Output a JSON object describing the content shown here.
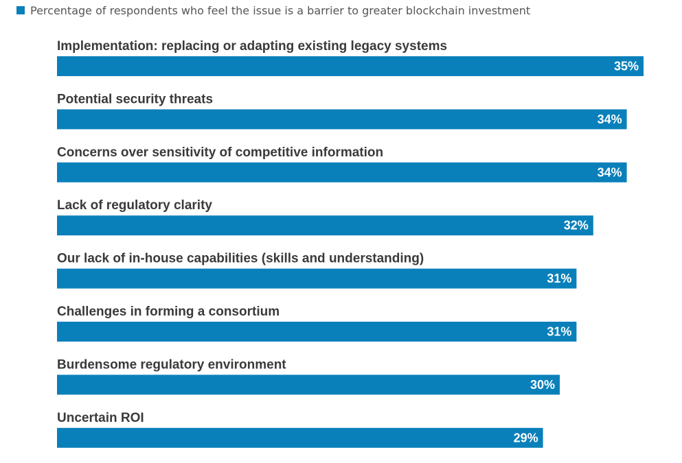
{
  "legend": {
    "label": "Percentage of respondents who feel the issue is a barrier to greater blockchain investment",
    "color": "#0a80ba"
  },
  "chart_data": {
    "type": "bar",
    "orientation": "horizontal",
    "categories": [
      "Implementation: replacing or adapting existing legacy systems",
      "Potential security threats",
      "Concerns over sensitivity of competitive information",
      "Lack of regulatory clarity",
      "Our lack of in-house capabilities (skills and understanding)",
      "Challenges in forming a consortium",
      "Burdensome regulatory environment",
      "Uncertain ROI"
    ],
    "values": [
      35,
      34,
      34,
      32,
      31,
      31,
      30,
      29
    ],
    "value_labels": [
      "35%",
      "34%",
      "34%",
      "32%",
      "31%",
      "31%",
      "30%",
      "29%"
    ],
    "series": [
      {
        "name": "Percentage of respondents who feel the issue is a barrier to greater blockchain investment",
        "color": "#0a80ba"
      }
    ],
    "xlim": [
      0,
      35
    ],
    "grid": false,
    "legend_position": "top-left"
  }
}
